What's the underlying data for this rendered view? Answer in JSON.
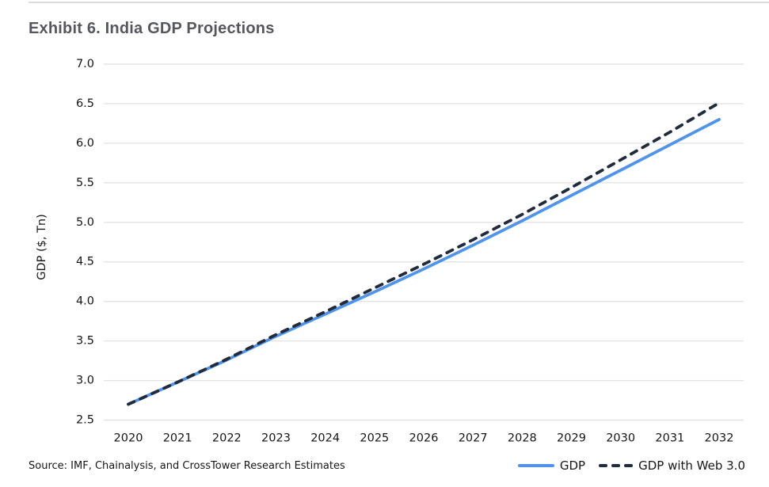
{
  "page": {
    "title": "Exhibit 6. India GDP Projections",
    "source": "Source: IMF, Chainalysis, and CrossTower Research Estimates"
  },
  "colors": {
    "gdp_line": "#4f94ea",
    "web3_line": "#202b3c",
    "gridline": "#e3e3e3",
    "title_text": "#55575c",
    "axis_text": "#161616",
    "top_rule": "#d9dadb"
  },
  "chart_data": {
    "type": "line",
    "title": "Exhibit 6. India GDP Projections",
    "xlabel": "",
    "ylabel": "GDP ($, Tn)",
    "x": [
      2020,
      2021,
      2022,
      2023,
      2024,
      2025,
      2026,
      2027,
      2028,
      2029,
      2030,
      2031,
      2032
    ],
    "series": [
      {
        "name": "GDP",
        "style": "solid",
        "color": "#4f94ea",
        "values": [
          2.7,
          2.98,
          3.26,
          3.56,
          3.84,
          4.12,
          4.41,
          4.71,
          5.02,
          5.34,
          5.66,
          5.98,
          6.3
        ]
      },
      {
        "name": "GDP with Web 3.0",
        "style": "dashed",
        "color": "#202b3c",
        "values": [
          2.7,
          2.98,
          3.27,
          3.58,
          3.87,
          4.17,
          4.47,
          4.78,
          5.1,
          5.44,
          5.79,
          6.14,
          6.51
        ]
      }
    ],
    "ylim": [
      2.5,
      7.0
    ],
    "ytick_step": 0.5,
    "ytick_format_decimals": 1,
    "grid": "horizontal",
    "legend_position": "bottom-right"
  }
}
